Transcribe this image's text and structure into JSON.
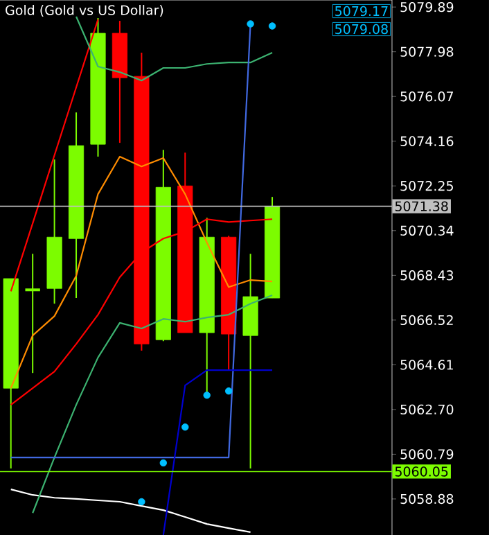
{
  "chart_data": {
    "type": "candlestick",
    "title": "Gold (Gold vs US Dollar)",
    "tick_labels": "y",
    "categories": [
      null,
      null,
      null,
      null,
      null,
      null,
      null,
      null,
      null,
      null,
      null,
      null,
      null,
      null,
      null,
      null,
      null,
      null
    ],
    "ohlc": [
      [
        5063.61,
        5068.29,
        5060.18,
        5068.29
      ],
      [
        5067.81,
        5069.35,
        5064.26,
        5067.81
      ],
      [
        5067.87,
        5073.38,
        5067.22,
        5070.06
      ],
      [
        5070.0,
        5075.39,
        5067.46,
        5073.97
      ],
      [
        5074.03,
        5079.42,
        5073.5,
        5078.77
      ],
      [
        5078.77,
        5079.3,
        5074.09,
        5076.87
      ],
      [
        5076.93,
        5077.94,
        5065.21,
        5065.5
      ],
      [
        5065.68,
        5073.79,
        5065.62,
        5072.19
      ],
      [
        5072.25,
        5073.67,
        5065.98,
        5065.98
      ],
      [
        5065.98,
        5070.89,
        5063.31,
        5070.06
      ],
      [
        5070.06,
        5070.12,
        5064.38,
        5065.92
      ],
      [
        5065.86,
        5069.35,
        5060.18,
        5067.52
      ],
      [
        5067.46,
        5071.78,
        5067.46,
        5071.38
      ],
      null,
      null,
      null,
      null,
      null
    ],
    "colors": [
      "#7cfc00",
      "#7cfc00",
      "#7cfc00",
      "#7cfc00",
      "#7cfc00",
      "#ff0000",
      "#ff0000",
      "#7cfc00",
      "#ff0000",
      "#7cfc00",
      "#ff0000",
      "#7cfc00",
      "#7cfc00",
      null,
      null,
      null,
      null,
      null
    ],
    "series": [
      {
        "type": "line",
        "color": "#ffffff",
        "values": [
          5059.29,
          5059.05,
          5058.93,
          5058.88,
          5058.82,
          5058.76,
          5058.58,
          5058.4,
          5058.11,
          5057.81,
          5057.63,
          5057.46,
          null,
          null,
          null,
          null,
          null,
          null
        ]
      },
      {
        "type": "line",
        "color": "#ff0000",
        "values": [
          5067.75,
          5070.65,
          5073.56,
          5076.46,
          5079.36,
          null,
          null,
          null,
          null,
          null,
          null,
          null,
          null,
          null,
          null,
          null,
          null,
          null
        ]
      },
      {
        "type": "line",
        "color": "#3cb371",
        "values": [
          null,
          null,
          null,
          5079.48,
          5077.35,
          5077.11,
          5076.75,
          5077.29,
          5077.29,
          5077.46,
          5077.52,
          5077.52,
          5077.94,
          null,
          null,
          null,
          null,
          null
        ]
      },
      {
        "type": "line",
        "color": "#3cb371",
        "values": [
          null,
          5058.28,
          5060.65,
          5062.9,
          5064.92,
          5066.4,
          5066.16,
          5066.57,
          5066.45,
          5066.63,
          5066.75,
          5067.22,
          5067.58,
          null,
          null,
          null,
          null,
          null
        ]
      },
      {
        "type": "line",
        "color": "#ff8c00",
        "values": [
          5063.61,
          5065.86,
          5066.69,
          5068.41,
          5071.9,
          5073.5,
          5073.08,
          5073.44,
          5071.9,
          5069.83,
          5067.93,
          5068.23,
          5068.17,
          null,
          null,
          null,
          null,
          null
        ]
      },
      {
        "type": "line",
        "color": "#ff0000",
        "values": [
          5062.9,
          5063.61,
          5064.32,
          5065.5,
          5066.75,
          5068.35,
          5069.41,
          5070.0,
          5070.3,
          5070.83,
          5070.71,
          5070.77,
          5070.83,
          null,
          null,
          null,
          null,
          null
        ]
      },
      {
        "type": "line",
        "color": "#4169e1",
        "values": [
          5060.65,
          5060.65,
          5060.65,
          5060.65,
          5060.65,
          5060.65,
          5060.65,
          5060.65,
          5060.65,
          5060.65,
          5060.65,
          5079.17,
          null,
          null,
          null,
          null,
          null,
          null
        ]
      },
      {
        "type": "line",
        "color": "#0000cd",
        "values": [
          null,
          null,
          null,
          null,
          null,
          null,
          null,
          5057.34,
          5063.73,
          5064.38,
          5064.38,
          5064.38,
          5064.38,
          null,
          null,
          null,
          null,
          null
        ]
      },
      {
        "type": "scatter",
        "marker": "circle",
        "color": "#00bfff",
        "values": [
          null,
          null,
          null,
          null,
          null,
          null,
          5058.76,
          5060.42,
          5061.95,
          5063.31,
          5063.49,
          5079.17,
          5079.08,
          null,
          null,
          null,
          null,
          null
        ]
      }
    ],
    "ylim": [
      5057.34,
      5080.19
    ],
    "yticks": [
      5058.88,
      5060.79,
      {
        "value": 5062.7,
        "label": "5062.70"
      },
      5064.61,
      5066.52,
      5068.43,
      5070.34,
      5072.25,
      5074.16,
      5076.07,
      5077.98,
      5079.89
    ],
    "ref_lines": [
      {
        "axis": "y",
        "value": 5071.38,
        "label": "5071.38",
        "color": "#c0c0c0"
      },
      {
        "axis": "y",
        "value": 5060.05,
        "label": "5060.05",
        "color": "#7cfc00"
      }
    ],
    "annotations": [
      "5079.17",
      "5079.08"
    ]
  }
}
